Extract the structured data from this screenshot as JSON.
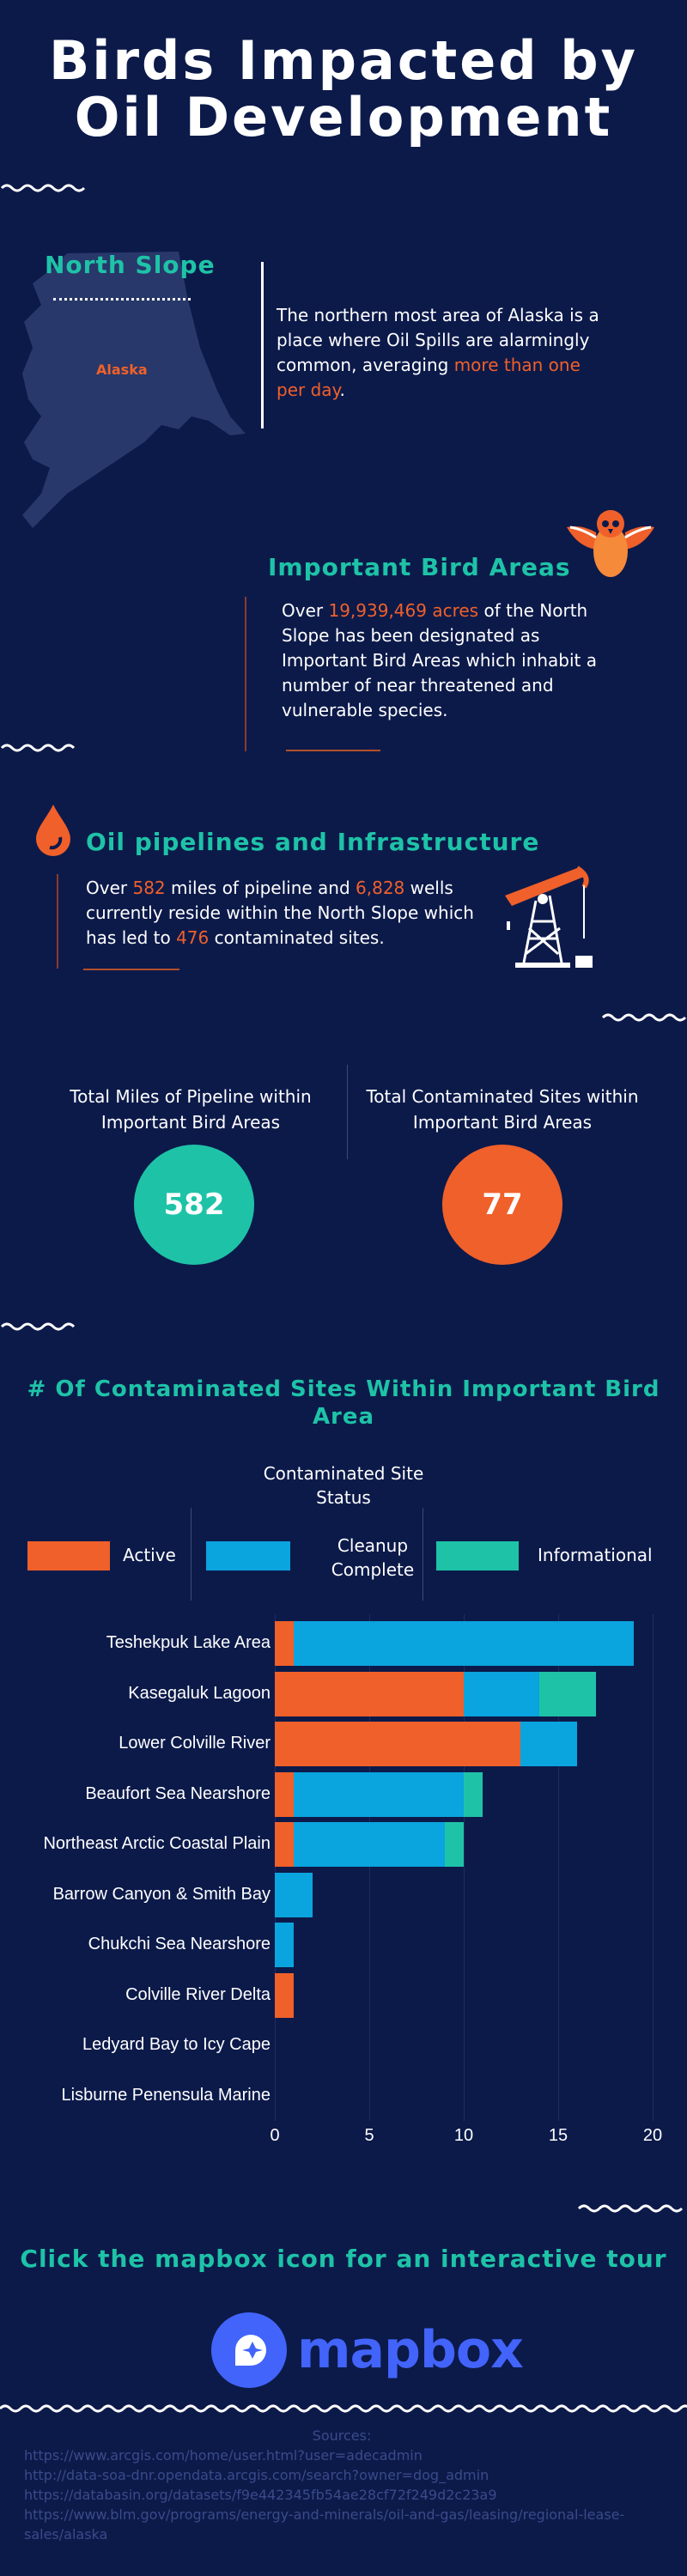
{
  "title": {
    "line1": "Birds Impacted by",
    "line2": "Oil Development"
  },
  "north_slope": {
    "heading": "North Slope",
    "map_label": "Alaska",
    "text_before": "The northern most area of Alaska is a place where Oil Spills are alarmingly common, averaging ",
    "highlight": "more than one per day",
    "text_after": "."
  },
  "bird_areas": {
    "heading": "Important Bird Areas",
    "pre": "Over ",
    "acres": "19,939,469 acres",
    "post": " of the North Slope has been designated as Important Bird Areas which inhabit a number of near threatened and vulnerable species."
  },
  "pipelines": {
    "heading": "Oil pipelines and Infrastructure",
    "pre": "Over ",
    "miles": "582",
    "mid1": " miles of pipeline and ",
    "wells": "6,828",
    "mid2": " wells currently reside within the North Slope which has led to ",
    "sites": "476",
    "post": " contaminated sites."
  },
  "stats": {
    "miles_label": "Total Miles of Pipeline within Important Bird Areas",
    "miles_value": "582",
    "sites_label": "Total Contaminated Sites within Important Bird Areas",
    "sites_value": "77"
  },
  "colors": {
    "teal": "#1ec3a7",
    "orange": "#f0602a",
    "blue": "#0aa4de",
    "background": "#0c1a4a"
  },
  "chart_data": {
    "type": "bar",
    "orientation": "horizontal",
    "stacked": true,
    "title": "# Of Contaminated Sites Within Important Bird Area",
    "legend_title": "Contaminated Site Status",
    "categories": [
      "Teshekpuk Lake Area",
      "Kasegaluk Lagoon",
      "Lower Colville River",
      "Beaufort Sea Nearshore",
      "Northeast Arctic Coastal Plain",
      "Barrow Canyon & Smith Bay",
      "Chukchi Sea Nearshore",
      "Colville River Delta",
      "Ledyard Bay to Icy Cape",
      "Lisburne Penensula Marine"
    ],
    "series": [
      {
        "name": "Active",
        "color": "#f0602a",
        "values": [
          1,
          10,
          13,
          1,
          1,
          0,
          0,
          1,
          0,
          0
        ]
      },
      {
        "name": "Cleanup Complete",
        "color": "#0aa4de",
        "values": [
          18,
          4,
          3,
          9,
          8,
          2,
          1,
          0,
          0,
          0
        ]
      },
      {
        "name": "Informational",
        "color": "#1ec3a7",
        "values": [
          0,
          3,
          0,
          1,
          1,
          0,
          0,
          0,
          0,
          0
        ]
      }
    ],
    "xlim": [
      0,
      20
    ],
    "xticks": [
      "0",
      "5",
      "10",
      "15",
      "20"
    ],
    "grid": true
  },
  "cta": {
    "text": "Click the mapbox icon for an interactive tour",
    "brand": "mapbox"
  },
  "sources": {
    "title": "Sources:",
    "links": [
      "https://www.arcgis.com/home/user.html?user=adecadmin",
      "http://data-soa-dnr.opendata.arcgis.com/search?owner=dog_admin",
      "https://databasin.org/datasets/f9e442345fb54ae28cf72f249d2c23a9",
      "https://www.blm.gov/programs/energy-and-minerals/oil-and-gas/leasing/regional-lease-sales/alaska"
    ]
  }
}
